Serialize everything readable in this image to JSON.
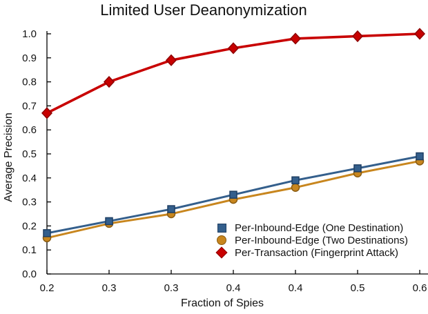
{
  "chart_data": {
    "type": "line",
    "title": "Limited User Deanonymization",
    "xlabel": "Fraction of Spies",
    "ylabel": "Average Precision",
    "x": [
      0.2,
      0.26,
      0.32,
      0.38,
      0.43,
      0.49,
      0.55
    ],
    "xtick_labels": [
      "0.2",
      "0.3",
      "0.3",
      "0.4",
      "0.4",
      "0.5",
      "0.6"
    ],
    "ytick_labels": [
      "0.0",
      "0.1",
      "0.2",
      "0.3",
      "0.4",
      "0.5",
      "0.6",
      "0.7",
      "0.8",
      "0.9",
      "1.0"
    ],
    "yticks": [
      0.0,
      0.1,
      0.2,
      0.3,
      0.4,
      0.5,
      0.6,
      0.7,
      0.8,
      0.9,
      1.0
    ],
    "xlim": [
      0.2,
      0.56
    ],
    "ylim": [
      0.0,
      1.0
    ],
    "grid": false,
    "legend_position": "lower-right-inside",
    "axis_color": "#000000",
    "text_color": "#111111",
    "series": [
      {
        "name": "Per-Inbound-Edge (One Destination)",
        "marker": "square",
        "color": "#345f8c",
        "edge_color": "#1f3f63",
        "values": [
          0.17,
          0.22,
          0.27,
          0.33,
          0.39,
          0.44,
          0.49
        ]
      },
      {
        "name": "Per-Inbound-Edge (Two Destinations)",
        "marker": "circle",
        "color": "#c8861e",
        "edge_color": "#8a5c12",
        "values": [
          0.15,
          0.21,
          0.25,
          0.31,
          0.36,
          0.42,
          0.47
        ]
      },
      {
        "name": "Per-Transaction (Fingerprint Attack)",
        "marker": "diamond",
        "color": "#c80000",
        "edge_color": "#8e0000",
        "values": [
          0.67,
          0.8,
          0.89,
          0.94,
          0.98,
          0.99,
          1.0
        ]
      }
    ]
  }
}
